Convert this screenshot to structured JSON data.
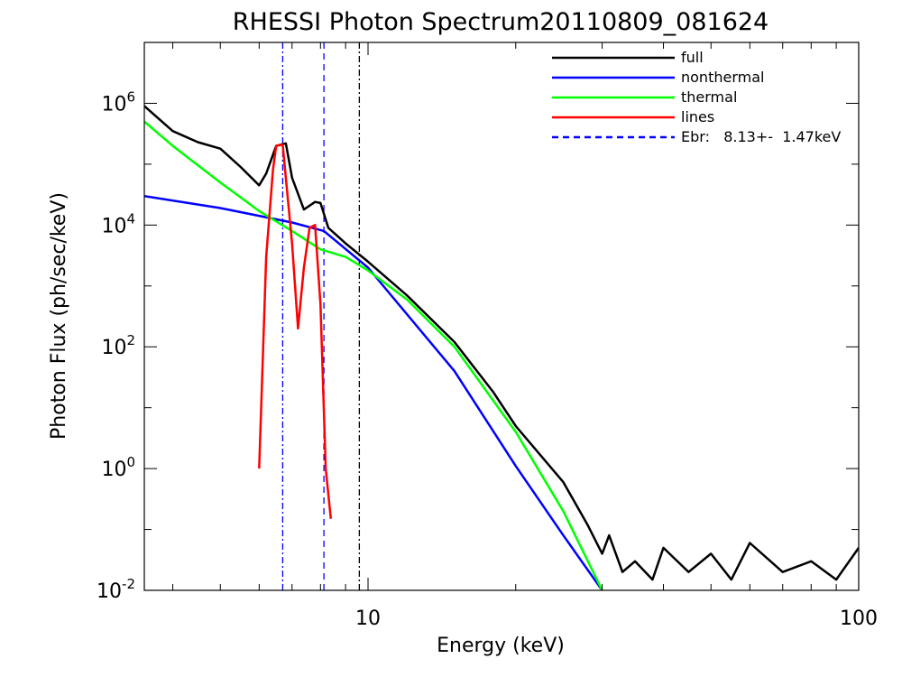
{
  "chart_data": {
    "type": "line",
    "title": "RHESSI Photon Spectrum20110809_081624",
    "xlabel": "Energy (keV)",
    "ylabel": "Photon Flux (ph/sec/keV)",
    "xscale": "log",
    "yscale": "log",
    "xlim": [
      3.5,
      100
    ],
    "ylim": [
      0.01,
      10000000
    ],
    "grid": false,
    "legend_position": "top-right",
    "x_ticks": [
      {
        "value": 10,
        "label": "10"
      },
      {
        "value": 100,
        "label": "100"
      }
    ],
    "y_ticks": [
      {
        "value": 0.01,
        "base": "10",
        "exp": "-2"
      },
      {
        "value": 1,
        "base": "10",
        "exp": "0"
      },
      {
        "value": 100,
        "base": "10",
        "exp": "2"
      },
      {
        "value": 10000,
        "base": "10",
        "exp": "4"
      },
      {
        "value": 1000000,
        "base": "10",
        "exp": "6"
      }
    ],
    "series": [
      {
        "name": "full",
        "color": "#000000",
        "style": "solid",
        "x": [
          3.5,
          4.0,
          4.5,
          5.0,
          5.5,
          6.0,
          6.2,
          6.5,
          6.8,
          7.0,
          7.4,
          7.8,
          8.0,
          8.3,
          9.0,
          10.0,
          12.0,
          15.0,
          18.0,
          20.0,
          25.0,
          28.0,
          30.0,
          31.0,
          33.0,
          35.0,
          38.0,
          40.0,
          45.0,
          50.0,
          55.0,
          60.0,
          70.0,
          80.0,
          90.0,
          100.0
        ],
        "y": [
          900000,
          350000,
          230000,
          180000,
          90000,
          45000,
          70000,
          200000,
          220000,
          60000,
          18000,
          24000,
          23000,
          9000,
          5000,
          2500,
          700,
          120,
          18,
          5,
          0.6,
          0.12,
          0.04,
          0.08,
          0.02,
          0.03,
          0.015,
          0.05,
          0.02,
          0.04,
          0.015,
          0.06,
          0.02,
          0.03,
          0.015,
          0.05
        ]
      },
      {
        "name": "nonthermal",
        "color": "#0000ff",
        "style": "solid",
        "x": [
          3.5,
          5.0,
          7.0,
          8.13,
          10.0,
          15.0,
          20.0,
          25.0,
          30.0
        ],
        "y": [
          30000,
          19000,
          11000,
          8000,
          2000,
          40,
          1.1,
          0.08,
          0.01
        ]
      },
      {
        "name": "thermal",
        "color": "#00ff00",
        "style": "solid",
        "x": [
          3.5,
          4.0,
          5.0,
          6.0,
          7.0,
          8.0,
          9.0,
          10.0,
          12.0,
          15.0,
          20.0,
          25.0,
          30.0
        ],
        "y": [
          500000,
          200000,
          50000,
          17000,
          8000,
          4000,
          3000,
          1800,
          600,
          100,
          4,
          0.2,
          0.01
        ]
      },
      {
        "name": "lines",
        "color": "#ff0000",
        "style": "solid",
        "x": [
          6.0,
          6.2,
          6.4,
          6.5,
          6.7,
          7.0,
          7.2,
          7.4,
          7.6,
          7.8,
          8.0,
          8.2,
          8.4
        ],
        "y": [
          1,
          3000,
          80000,
          200000,
          210000,
          5000,
          200,
          2000,
          9000,
          10000,
          500,
          1,
          0.15
        ]
      }
    ],
    "vlines": [
      {
        "x": 6.7,
        "color": "#0000ff",
        "style": "dashdot"
      },
      {
        "x": 8.13,
        "color": "#0000ff",
        "style": "dashed"
      },
      {
        "x": 9.6,
        "color": "#000000",
        "style": "dashdot"
      }
    ],
    "legend": [
      {
        "label": "full",
        "color": "#000000",
        "style": "solid"
      },
      {
        "label": "nonthermal",
        "color": "#0000ff",
        "style": "solid"
      },
      {
        "label": "thermal",
        "color": "#00ff00",
        "style": "solid"
      },
      {
        "label": "lines",
        "color": "#ff0000",
        "style": "solid"
      },
      {
        "label": "Ebr:   8.13+-  1.47keV",
        "color": "#0000ff",
        "style": "dashed"
      }
    ]
  }
}
